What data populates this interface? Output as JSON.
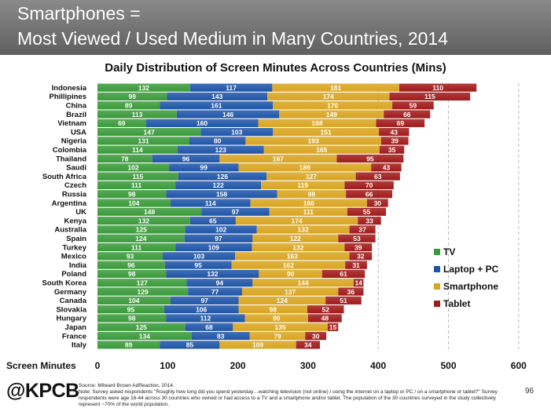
{
  "header": {
    "line1": "Smartphones =",
    "line2": "Most Viewed / Used Medium in Many Countries, 2014"
  },
  "chart_data": {
    "type": "bar",
    "orientation": "horizontal",
    "stacked": true,
    "title": "Daily Distribution of Screen Minutes Across Countries (Mins)",
    "xlabel": "Screen Minutes",
    "ylabel": "",
    "xlim": [
      0,
      600
    ],
    "xticks": [
      0,
      100,
      200,
      300,
      400,
      500,
      600
    ],
    "grid": "dashed vertical lines at 400, 500 and 600",
    "legend_position": "right",
    "categories": [
      "Indonesia",
      "Phillipines",
      "China",
      "Brazil",
      "Vietnam",
      "USA",
      "Nigeria",
      "Colombia",
      "Thailand",
      "Saudi",
      "South Africa",
      "Czech",
      "Russia",
      "Argentina",
      "UK",
      "Kenya",
      "Australia",
      "Spain",
      "Turkey",
      "Mexico",
      "India",
      "Poland",
      "South Korea",
      "Germany",
      "Canada",
      "Slovakia",
      "Hungary",
      "Japan",
      "France",
      "Italy"
    ],
    "series": [
      {
        "name": "TV",
        "color": "#3a9a3a",
        "values": [
          132,
          99,
          89,
          113,
          69,
          147,
          131,
          114,
          78,
          102,
          115,
          111,
          98,
          104,
          148,
          132,
          125,
          124,
          111,
          93,
          96,
          98,
          127,
          129,
          104,
          95,
          98,
          125,
          134,
          89
        ]
      },
      {
        "name": "Laptop + PC",
        "color": "#1f55a8",
        "values": [
          117,
          143,
          161,
          146,
          160,
          103,
          80,
          123,
          96,
          99,
          126,
          122,
          158,
          114,
          97,
          65,
          102,
          97,
          109,
          103,
          95,
          132,
          94,
          77,
          97,
          106,
          112,
          68,
          83,
          85
        ]
      },
      {
        "name": "Smartphone",
        "color": "#d9a521",
        "values": [
          181,
          174,
          170,
          149,
          168,
          151,
          193,
          165,
          167,
          189,
          127,
          119,
          98,
          166,
          111,
          174,
          132,
          122,
          132,
          163,
          162,
          90,
          144,
          137,
          124,
          98,
          90,
          135,
          79,
          109
        ]
      },
      {
        "name": "Tablet",
        "color": "#a11a1a",
        "values": [
          110,
          115,
          59,
          66,
          69,
          43,
          39,
          35,
          95,
          43,
          63,
          70,
          66,
          30,
          55,
          33,
          37,
          53,
          39,
          32,
          31,
          61,
          14,
          36,
          51,
          52,
          48,
          15,
          30,
          34
        ]
      }
    ]
  },
  "footer": {
    "logo": "@KPCB",
    "source": "Source: Milward Brown AdReaction, 2014.",
    "note": "Note: Survey asked respondents \"Roughly how long did you spend yesterday…watching television (not online) / using the internet on a laptop or PC / on a smartphone or tablet?\" Survey respondents were age 16-44 across 30 countries who owned or had access to a TV and a smartphone and/or tablet. The population of the 30 countries surveyed in the study collectively represent ~70% of the world population.",
    "page_number": "96"
  }
}
